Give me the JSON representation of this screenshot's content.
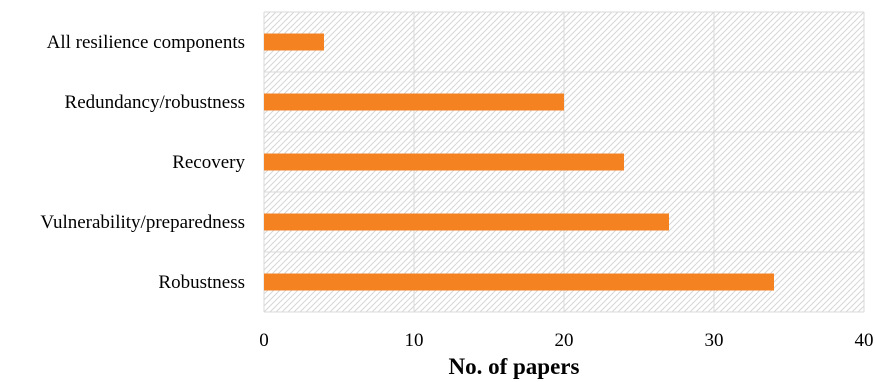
{
  "chart_data": {
    "type": "bar",
    "orientation": "horizontal",
    "categories": [
      "All resilience components",
      "Redundancy/robustness",
      "Recovery",
      "Vulnerability/preparedness",
      "Robustness"
    ],
    "values": [
      4,
      20,
      24,
      27,
      34
    ],
    "title": "",
    "xlabel": "No. of papers",
    "ylabel": "",
    "xlim": [
      0,
      40
    ],
    "xticks": [
      "0",
      "10",
      "20",
      "30",
      "40"
    ],
    "grid": true,
    "plot_background": "diagonal-hatch",
    "legend": "none",
    "colors": {
      "bar": "#F58220",
      "grid": "#D9D9D9",
      "hatch": "#D6D6D6"
    }
  }
}
